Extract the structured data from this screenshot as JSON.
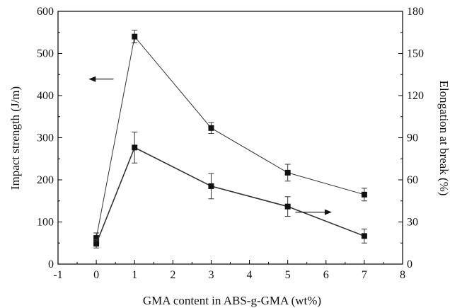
{
  "chart_data": {
    "type": "line",
    "xlabel": "GMA content in ABS-g-GMA (wt%)",
    "ylabel_left": "Impact strength (J/m)",
    "ylabel_right": "Elongation at break (%)",
    "xlim": [
      -1,
      8
    ],
    "ylim_left": [
      0,
      600
    ],
    "ylim_right": [
      0,
      180
    ],
    "x_ticks": [
      "-1",
      "0",
      "1",
      "2",
      "3",
      "4",
      "5",
      "6",
      "7",
      "8"
    ],
    "y_ticks_left": [
      "0",
      "100",
      "200",
      "300",
      "400",
      "500",
      "600"
    ],
    "y_ticks_right": [
      "0",
      "30",
      "60",
      "90",
      "120",
      "150",
      "180"
    ],
    "grid": false,
    "marker": "square",
    "series": [
      {
        "axis": "left",
        "arrow_direction": "left",
        "x": [
          0,
          1,
          3,
          5,
          7
        ],
        "y": [
          62,
          540,
          323,
          217,
          165
        ],
        "yerr": [
          12,
          15,
          13,
          20,
          15
        ]
      },
      {
        "axis": "right",
        "arrow_direction": "right",
        "x": [
          0,
          1,
          3,
          5,
          7
        ],
        "y": [
          14.5,
          83,
          55.5,
          41,
          20
        ],
        "yerr": [
          3,
          11,
          9,
          7,
          5
        ]
      }
    ]
  }
}
